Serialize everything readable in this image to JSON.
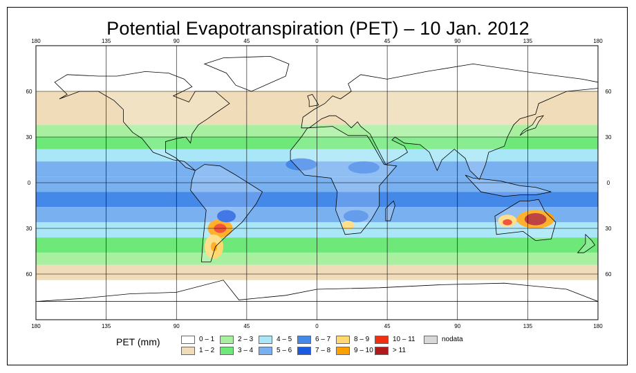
{
  "title": "Potential Evapotranspiration (PET) – 10 Jan. 2012",
  "axes": {
    "lon_ticks": [
      "180",
      "135",
      "90",
      "45",
      "0",
      "45",
      "90",
      "135",
      "180"
    ],
    "lat_ticks_left": [
      "60",
      "30",
      "0",
      "30",
      "60"
    ],
    "lat_ticks_right": [
      "60",
      "30",
      "0",
      "30",
      "60"
    ]
  },
  "map": {
    "projection": "equirectangular",
    "lon_range": [
      -180,
      180
    ],
    "lat_range": [
      -90,
      90
    ],
    "gridlines": true,
    "ocean_background_color": "#ffffff",
    "coastline_color": "#000000"
  },
  "legend": {
    "title": "PET (mm)",
    "items": [
      {
        "label": "0 – 1",
        "color": "#ffffff"
      },
      {
        "label": "1 – 2",
        "color": "#f0dcb8"
      },
      {
        "label": "2 – 3",
        "color": "#a8f0a0"
      },
      {
        "label": "3 – 4",
        "color": "#6ee878"
      },
      {
        "label": "4 – 5",
        "color": "#a8e6f8"
      },
      {
        "label": "5 – 6",
        "color": "#78b0f0"
      },
      {
        "label": "6 – 7",
        "color": "#4488e8"
      },
      {
        "label": "7 – 8",
        "color": "#1a5ae0"
      },
      {
        "label": "8 – 9",
        "color": "#ffd870"
      },
      {
        "label": "9 – 10",
        "color": "#ffa000"
      },
      {
        "label": "10 – 11",
        "color": "#f03010"
      },
      {
        "label": "> 11",
        "color": "#b01a1a"
      },
      {
        "label": "nodata",
        "color": "#d8d8d8"
      }
    ]
  }
}
